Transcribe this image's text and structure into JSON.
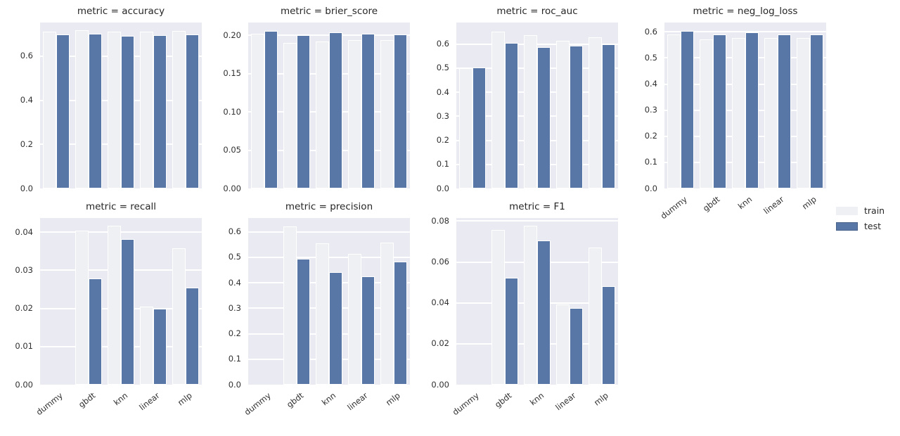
{
  "figure": {
    "background": "#ffffff",
    "axes_background": "#eaeaf2",
    "gridline_color": "#ffffff",
    "text_color": "#262626"
  },
  "colors": {
    "train": "#eff0f3",
    "test": "#5877a7"
  },
  "legend": {
    "items": [
      {
        "label": "train",
        "color": "#eff0f3"
      },
      {
        "label": "test",
        "color": "#5877a7"
      }
    ]
  },
  "chart_data": {
    "type": "bar",
    "facet_variable": "metric",
    "categories": [
      "dummy",
      "gbdt",
      "knn",
      "linear",
      "mlp"
    ],
    "legend_entries": [
      "train",
      "test"
    ],
    "legend_position": "center right",
    "grid": true,
    "facets": [
      {
        "metric": "accuracy",
        "title": "metric = accuracy",
        "ylim": [
          0,
          0.753
        ],
        "yticks": [
          0.0,
          0.2,
          0.4,
          0.6
        ],
        "ytick_labels": [
          "0.0",
          "0.2",
          "0.4",
          "0.6"
        ],
        "show_x_tick_labels": false,
        "series": [
          {
            "name": "train",
            "values": [
              0.712,
              0.717,
              0.713,
              0.71,
              0.715
            ]
          },
          {
            "name": "test",
            "values": [
              0.699,
              0.701,
              0.691,
              0.694,
              0.699
            ]
          }
        ]
      },
      {
        "metric": "brier_score",
        "title": "metric = brier_score",
        "ylim": [
          0,
          0.217
        ],
        "yticks": [
          0.0,
          0.05,
          0.1,
          0.15,
          0.2
        ],
        "ytick_labels": [
          "0.00",
          "0.05",
          "0.10",
          "0.15",
          "0.20"
        ],
        "show_x_tick_labels": false,
        "series": [
          {
            "name": "train",
            "values": [
              0.202,
              0.19,
              0.192,
              0.194,
              0.194
            ]
          },
          {
            "name": "test",
            "values": [
              0.206,
              0.2,
              0.204,
              0.202,
              0.201
            ]
          }
        ]
      },
      {
        "metric": "roc_auc",
        "title": "metric = roc_auc",
        "ylim": [
          0,
          0.69
        ],
        "yticks": [
          0.0,
          0.1,
          0.2,
          0.3,
          0.4,
          0.5,
          0.6
        ],
        "ytick_labels": [
          "0.0",
          "0.1",
          "0.2",
          "0.3",
          "0.4",
          "0.5",
          "0.6"
        ],
        "show_x_tick_labels": false,
        "series": [
          {
            "name": "train",
            "values": [
              0.5,
              0.653,
              0.637,
              0.614,
              0.629
            ]
          },
          {
            "name": "test",
            "values": [
              0.502,
              0.605,
              0.587,
              0.594,
              0.599
            ]
          }
        ]
      },
      {
        "metric": "neg_log_loss",
        "title": "metric = neg_log_loss",
        "ylim": [
          0,
          0.636
        ],
        "yticks": [
          0.0,
          0.1,
          0.2,
          0.3,
          0.4,
          0.5,
          0.6
        ],
        "ytick_labels": [
          "0.0",
          "0.1",
          "0.2",
          "0.3",
          "0.4",
          "0.5",
          "0.6"
        ],
        "show_x_tick_labels": true,
        "series": [
          {
            "name": "train",
            "values": [
              0.589,
              0.571,
              0.576,
              0.578,
              0.576
            ]
          },
          {
            "name": "test",
            "values": [
              0.605,
              0.589,
              0.599,
              0.591,
              0.59
            ]
          }
        ]
      },
      {
        "metric": "recall",
        "title": "metric = recall",
        "ylim": [
          0,
          0.0437
        ],
        "yticks": [
          0.0,
          0.01,
          0.02,
          0.03,
          0.04
        ],
        "ytick_labels": [
          "0.00",
          "0.01",
          "0.02",
          "0.03",
          "0.04"
        ],
        "show_x_tick_labels": true,
        "series": [
          {
            "name": "train",
            "values": [
              0.0,
              0.0403,
              0.0416,
              0.0204,
              0.0357
            ]
          },
          {
            "name": "test",
            "values": [
              0.0,
              0.0278,
              0.0382,
              0.02,
              0.0254
            ]
          }
        ]
      },
      {
        "metric": "precision",
        "title": "metric = precision",
        "ylim": [
          0,
          0.654
        ],
        "yticks": [
          0.0,
          0.1,
          0.2,
          0.3,
          0.4,
          0.5,
          0.6
        ],
        "ytick_labels": [
          "0.0",
          "0.1",
          "0.2",
          "0.3",
          "0.4",
          "0.5",
          "0.6"
        ],
        "show_x_tick_labels": true,
        "series": [
          {
            "name": "train",
            "values": [
              0.0,
              0.622,
              0.556,
              0.512,
              0.557
            ]
          },
          {
            "name": "test",
            "values": [
              0.0,
              0.495,
              0.442,
              0.426,
              0.483
            ]
          }
        ]
      },
      {
        "metric": "F1",
        "title": "metric = F1",
        "ylim": [
          0,
          0.0815
        ],
        "yticks": [
          0.0,
          0.02,
          0.04,
          0.06,
          0.08
        ],
        "ytick_labels": [
          "0.00",
          "0.02",
          "0.04",
          "0.06",
          "0.08"
        ],
        "show_x_tick_labels": true,
        "series": [
          {
            "name": "train",
            "values": [
              0.0,
              0.0758,
              0.0776,
              0.0392,
              0.0672
            ]
          },
          {
            "name": "test",
            "values": [
              0.0,
              0.0522,
              0.0705,
              0.0375,
              0.0483
            ]
          }
        ]
      }
    ]
  }
}
